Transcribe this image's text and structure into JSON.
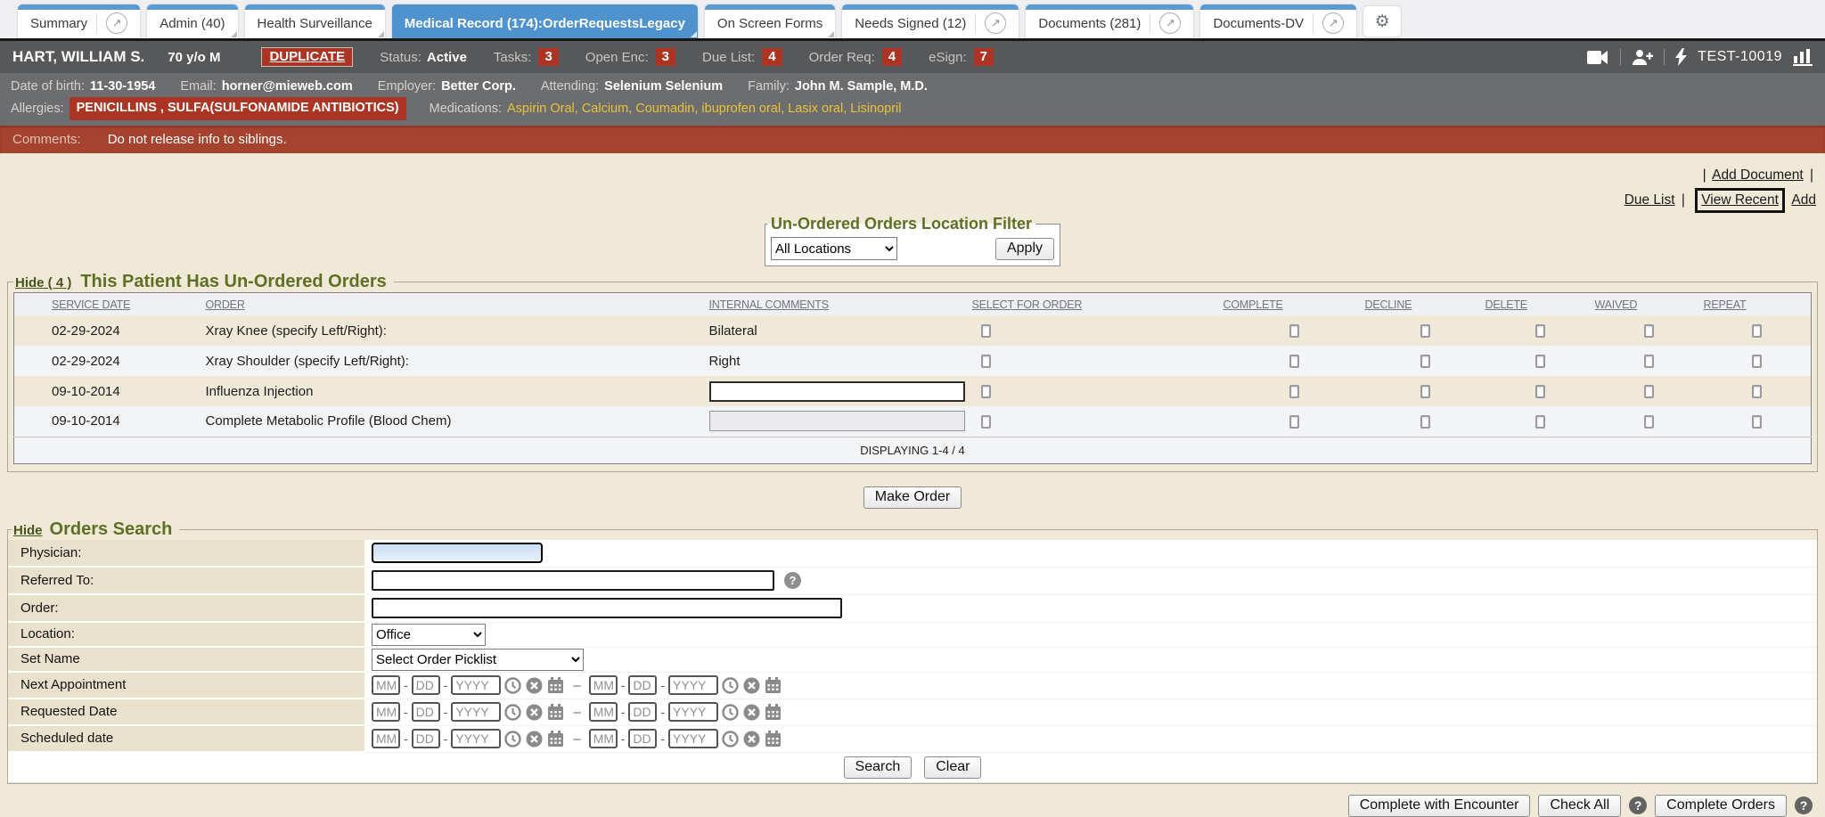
{
  "icons": {
    "gear": "⚙",
    "popout": "↗",
    "help": "?"
  },
  "colors": {
    "accent_blue": "#4f93ce",
    "badge_red": "#ac3423",
    "comments_red": "#a5432f",
    "heading_green": "#5d7024",
    "medication_gold": "#e9c23b",
    "beige_bg": "#f0e9d8"
  },
  "tabs": {
    "items": [
      {
        "label": "Summary"
      },
      {
        "label": "Admin (40)"
      },
      {
        "label": "Health Surveillance"
      },
      {
        "label": "Medical Record (174):OrderRequestsLegacy"
      },
      {
        "label": "On Screen Forms"
      },
      {
        "label": "Needs Signed (12)"
      },
      {
        "label": "Documents (281)"
      },
      {
        "label": "Documents-DV"
      }
    ]
  },
  "patient": {
    "name": "HART, WILLIAM S.",
    "age_sex": "70 y/o M",
    "duplicate_label": "DUPLICATE",
    "status_label": "Status:",
    "status_value": "Active",
    "counters": [
      {
        "label": "Tasks:",
        "value": "3"
      },
      {
        "label": "Open Enc:",
        "value": "3"
      },
      {
        "label": "Due List:",
        "value": "4"
      },
      {
        "label": "Order Req:",
        "value": "4"
      },
      {
        "label": "eSign:",
        "value": "7"
      }
    ],
    "station": "TEST-10019"
  },
  "demographics": {
    "fields": [
      {
        "label": "Date of birth:",
        "value": "11-30-1954"
      },
      {
        "label": "Email:",
        "value": "horner@mieweb.com"
      },
      {
        "label": "Employer:",
        "value": "Better Corp."
      },
      {
        "label": "Attending:",
        "value": "Selenium Selenium"
      },
      {
        "label": "Family:",
        "value": "John M. Sample, M.D."
      }
    ],
    "allergies_label": "Allergies:",
    "allergies_value": "PENICILLINS , SULFA(SULFONAMIDE ANTIBIOTICS)",
    "medications_label": "Medications:",
    "medications": [
      "Aspirin Oral",
      "Calcium",
      "Coumadin",
      "ibuprofen oral",
      "Lasix oral",
      "Lisinopril"
    ]
  },
  "comments": {
    "label": "Comments:",
    "value": "Do not release info to siblings."
  },
  "quick_links": {
    "pipe": "|",
    "add_document": "Add Document",
    "due_list": "Due List",
    "view_recent": "View Recent",
    "add": "Add"
  },
  "location_filter": {
    "title": "Un-Ordered Orders Location Filter",
    "select_value": "All Locations",
    "apply_label": "Apply"
  },
  "unordered_orders": {
    "hide_link": "Hide ( 4 )",
    "title": "This Patient Has Un-Ordered Orders",
    "columns": [
      "SERVICE DATE",
      "ORDER",
      "INTERNAL COMMENTS",
      "SELECT FOR ORDER",
      "COMPLETE",
      "DECLINE",
      "DELETE",
      "WAIVED",
      "REPEAT"
    ],
    "rows": [
      {
        "service_date": "02-29-2024",
        "order": "Xray Knee (specify Left/Right):",
        "internal_comment": "Bilateral"
      },
      {
        "service_date": "02-29-2024",
        "order": "Xray Shoulder (specify Left/Right):",
        "internal_comment": "Right"
      },
      {
        "service_date": "09-10-2014",
        "order": "Influenza Injection",
        "internal_comment": ""
      },
      {
        "service_date": "09-10-2014",
        "order": "Complete Metabolic Profile (Blood Chem)",
        "internal_comment": ""
      }
    ],
    "footer": "DISPLAYING 1-4 / 4",
    "make_order_label": "Make Order"
  },
  "orders_search": {
    "hide_link": "Hide",
    "title": "Orders Search",
    "physician_label": "Physician:",
    "referred_label": "Referred To:",
    "order_label": "Order:",
    "location_label": "Location:",
    "location_value": "Office",
    "set_name_label": "Set Name",
    "set_name_value": "Select Order Picklist",
    "next_appt_label": "Next Appointment",
    "requested_label": "Requested Date",
    "scheduled_label": "Scheduled date",
    "date_placeholders": {
      "mm": "MM",
      "dd": "DD",
      "yyyy": "YYYY"
    },
    "sep": "-",
    "range_sep": "–",
    "search_label": "Search",
    "clear_label": "Clear"
  },
  "footer_actions": {
    "complete_with_encounter": "Complete with Encounter",
    "check_all": "Check All",
    "complete_orders": "Complete Orders"
  }
}
